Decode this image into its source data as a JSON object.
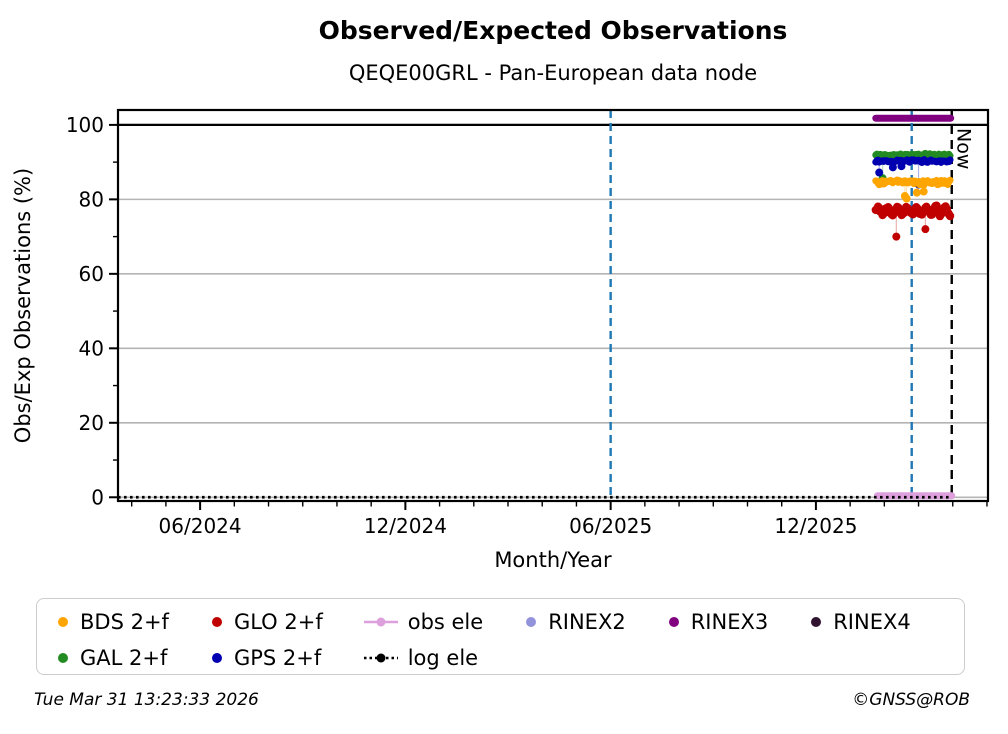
{
  "page": {
    "title": "Observed/Expected Observations",
    "subtitle": "QEQE00GRL - Pan-European data node"
  },
  "footer": {
    "timestamp": "Tue Mar 31 13:23:33 2026",
    "copyright": "©GNSS@ROB"
  },
  "chart_data": {
    "type": "scatter",
    "title": "Observed/Expected Observations",
    "subtitle": "QEQE00GRL - Pan-European data node",
    "xlabel": "Month/Year",
    "ylabel": "Obs/Exp Observations (%)",
    "x_major_ticks": [
      {
        "m": 5,
        "label": "06/2024"
      },
      {
        "m": 11,
        "label": "12/2024"
      },
      {
        "m": 17,
        "label": "06/2025"
      },
      {
        "m": 23,
        "label": "12/2025"
      }
    ],
    "x_minor_tick_every_months": 1,
    "xlim_months_since_jan2024": [
      2.6,
      28.03
    ],
    "ylim": [
      -1,
      104
    ],
    "y_major_ticks": [
      0,
      20,
      40,
      60,
      80,
      100
    ],
    "y_minor_ticks": [
      10,
      30,
      50,
      70,
      90
    ],
    "grid": true,
    "grid_color": "#b4b4b4",
    "reference_line_100_color": "#000000",
    "vlines": [
      {
        "m": 17.0,
        "color": "#1f77b4",
        "style": "dashed"
      },
      {
        "m": 25.8,
        "color": "#1f77b4",
        "style": "dashed"
      }
    ],
    "now_line": {
      "m": 26.97,
      "color": "#000000",
      "style": "dashed",
      "label": "Now"
    },
    "series": [
      {
        "name": "RINEX3",
        "color": "#800080",
        "kind": "thick-line",
        "value": 101.8,
        "m_range": [
          24.75,
          26.94
        ]
      },
      {
        "name": "GAL 2+f",
        "color": "#228B22",
        "kind": "daily-scatter",
        "value": 91.9,
        "noise": 0.5,
        "m_range": [
          24.75,
          26.94
        ],
        "outliers": [
          {
            "m": 24.95,
            "v": 85.7
          }
        ]
      },
      {
        "name": "GPS 2+f",
        "color": "#0000B0",
        "kind": "daily-scatter",
        "value": 90.3,
        "noise": 0.45,
        "m_range": [
          24.75,
          26.94
        ],
        "outliers": [
          {
            "m": 24.85,
            "v": 87.2
          },
          {
            "m": 25.25,
            "v": 88.6
          },
          {
            "m": 25.5,
            "v": 88.9
          },
          {
            "m": 26.0,
            "v": 84.0
          }
        ]
      },
      {
        "name": "BDS 2+f",
        "color": "#FFA500",
        "kind": "daily-scatter",
        "value": 84.6,
        "noise": 0.8,
        "m_range": [
          24.75,
          26.94
        ],
        "outliers": [
          {
            "m": 25.6,
            "v": 80.9
          },
          {
            "m": 25.65,
            "v": 80.2
          },
          {
            "m": 25.95,
            "v": 81.8
          },
          {
            "m": 26.15,
            "v": 82.1
          }
        ]
      },
      {
        "name": "GLO 2+f",
        "color": "#C00000",
        "kind": "daily-scatter-wavy",
        "value": 76.9,
        "noise": 0.6,
        "wave_amplitude": 1.0,
        "wave_period_months": 0.28,
        "m_range": [
          24.75,
          26.94
        ],
        "outliers": [
          {
            "m": 25.35,
            "v": 70.0
          },
          {
            "m": 26.2,
            "v": 72.0
          }
        ]
      },
      {
        "name": "obs ele",
        "color": "#DDA0DD",
        "kind": "thick-line",
        "value": 0.4,
        "m_range": [
          24.8,
          26.97
        ]
      },
      {
        "name": "log ele",
        "color": "#000000",
        "kind": "dotted-line",
        "value": 0.0,
        "m_range": [
          2.6,
          26.97
        ]
      }
    ]
  },
  "legend": {
    "columns": [
      [
        {
          "label": "BDS 2+f",
          "color": "#FFA500",
          "glyph": "dot"
        },
        {
          "label": "GAL 2+f",
          "color": "#228B22",
          "glyph": "dot"
        }
      ],
      [
        {
          "label": "GLO 2+f",
          "color": "#C00000",
          "glyph": "dot"
        },
        {
          "label": "GPS 2+f",
          "color": "#0000B0",
          "glyph": "dot"
        }
      ],
      [
        {
          "label": "obs ele",
          "color": "#DDA0DD",
          "glyph": "line-dot"
        },
        {
          "label": "log ele",
          "color": "#000000",
          "glyph": "dotted-line-dot"
        }
      ],
      [
        {
          "label": "RINEX2",
          "color": "#9393DB",
          "glyph": "dot"
        }
      ],
      [
        {
          "label": "RINEX3",
          "color": "#800080",
          "glyph": "dot"
        }
      ],
      [
        {
          "label": "RINEX4",
          "color": "#31122F",
          "glyph": "dot"
        }
      ]
    ]
  }
}
